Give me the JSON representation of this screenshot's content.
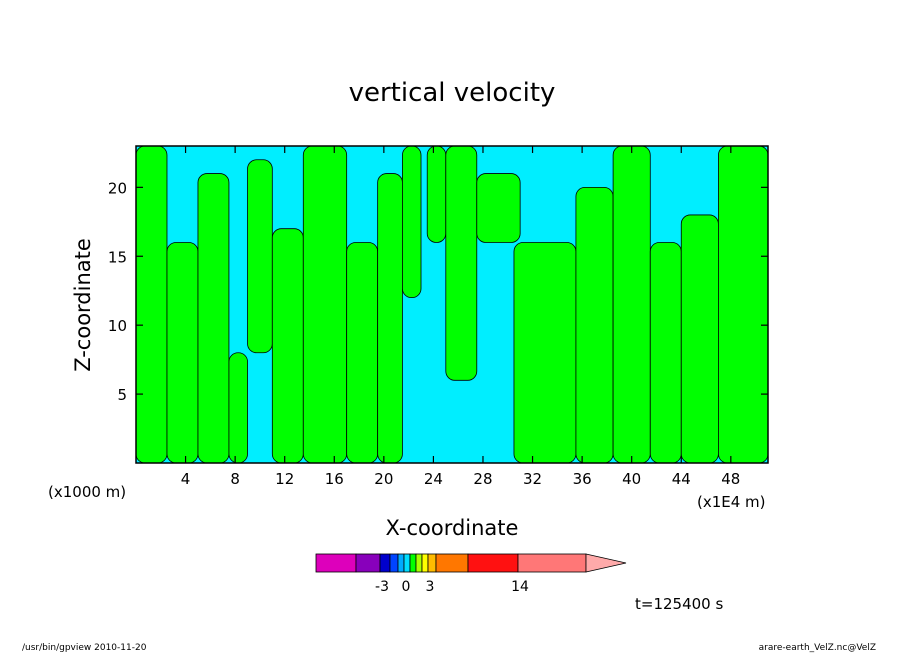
{
  "chart_data": {
    "type": "heatmap",
    "title": "vertical velocity",
    "xlabel": "X-coordinate",
    "ylabel": "Z-coordinate",
    "x_unit_left": "(x1000 m)",
    "x_unit_right": "(x1E4 m)",
    "xlim": [
      0,
      51
    ],
    "ylim": [
      0,
      23
    ],
    "x_ticks": [
      4,
      8,
      12,
      16,
      20,
      24,
      28,
      32,
      36,
      40,
      44,
      48
    ],
    "y_ticks": [
      5,
      10,
      15,
      20
    ],
    "x_tick_labels": [
      "4",
      "8",
      "12",
      "16",
      "20",
      "24",
      "28",
      "32",
      "36",
      "40",
      "44",
      "48"
    ],
    "y_tick_labels": [
      "5",
      "10",
      "15",
      "20"
    ],
    "colors": {
      "positive": "#00ff00",
      "negative": "#00eeff"
    },
    "positive_regions": [
      {
        "x": [
          0,
          2.5
        ],
        "y": [
          0,
          23
        ]
      },
      {
        "x": [
          2.5,
          5
        ],
        "y": [
          0,
          16
        ]
      },
      {
        "x": [
          5,
          7.5
        ],
        "y": [
          0,
          21
        ]
      },
      {
        "x": [
          7.5,
          9
        ],
        "y": [
          0,
          8
        ]
      },
      {
        "x": [
          9,
          11
        ],
        "y": [
          8,
          22
        ]
      },
      {
        "x": [
          11,
          13.5
        ],
        "y": [
          0,
          17
        ]
      },
      {
        "x": [
          13.5,
          17
        ],
        "y": [
          0,
          23
        ]
      },
      {
        "x": [
          17,
          19.5
        ],
        "y": [
          0,
          16
        ]
      },
      {
        "x": [
          19.5,
          21.5
        ],
        "y": [
          0,
          21
        ]
      },
      {
        "x": [
          21.5,
          23
        ],
        "y": [
          12,
          23
        ]
      },
      {
        "x": [
          23.5,
          25
        ],
        "y": [
          16,
          23
        ]
      },
      {
        "x": [
          25,
          27.5
        ],
        "y": [
          6,
          23
        ]
      },
      {
        "x": [
          27.5,
          31
        ],
        "y": [
          16,
          21
        ]
      },
      {
        "x": [
          30.5,
          35.5
        ],
        "y": [
          0,
          16
        ]
      },
      {
        "x": [
          35.5,
          38.5
        ],
        "y": [
          0,
          20
        ]
      },
      {
        "x": [
          38.5,
          41.5
        ],
        "y": [
          0,
          23
        ]
      },
      {
        "x": [
          41.5,
          44
        ],
        "y": [
          0,
          16
        ]
      },
      {
        "x": [
          44,
          47
        ],
        "y": [
          0,
          18
        ]
      },
      {
        "x": [
          47,
          51
        ],
        "y": [
          0,
          23
        ]
      }
    ],
    "colorbar": {
      "colors": [
        "#dd00bb",
        "#8800bb",
        "#0000cc",
        "#0044ff",
        "#00aaff",
        "#00ddff",
        "#00ff00",
        "#aaff00",
        "#ffff00",
        "#ffbb00",
        "#ff7700",
        "#ff1111",
        "#ff7777",
        "#ffaaaa"
      ],
      "tick_labels": [
        "-3",
        "0",
        "3",
        "14"
      ]
    },
    "annotation": "t=125400 s"
  },
  "footer": {
    "left": "/usr/bin/gpview   2010-11-20",
    "right": "arare-earth_VelZ.nc@VelZ"
  }
}
